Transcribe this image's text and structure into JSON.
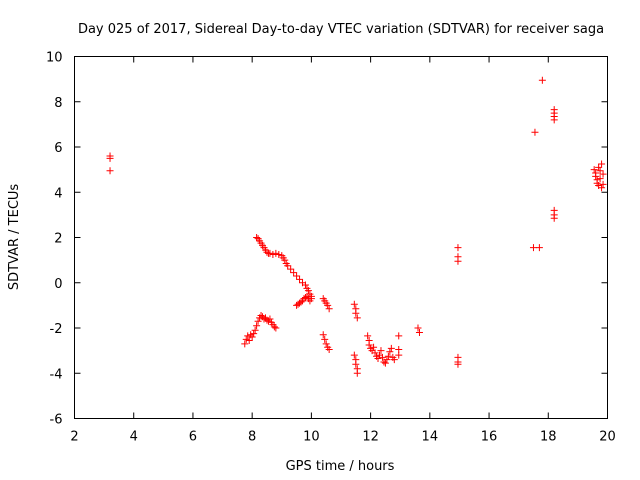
{
  "chart_data": {
    "type": "scatter",
    "title": "Day 025 of 2017, Sidereal Day-to-day VTEC variation (SDTVAR) for receiver saga",
    "xlabel": "GPS time / hours",
    "ylabel": "SDTVAR / TECUs",
    "xlim": [
      2,
      20
    ],
    "ylim": [
      -6,
      10
    ],
    "xticks": [
      2,
      4,
      6,
      8,
      10,
      12,
      14,
      16,
      18,
      20
    ],
    "yticks": [
      -6,
      -4,
      -2,
      0,
      2,
      4,
      6,
      8,
      10
    ],
    "grid": false,
    "marker": "+",
    "colors": {
      "points": "#ff0000",
      "axes": "#000000"
    },
    "series": [
      {
        "name": "SDTVAR",
        "points": [
          [
            3.2,
            5.6
          ],
          [
            3.2,
            5.5
          ],
          [
            3.2,
            4.95
          ],
          [
            7.75,
            -2.7
          ],
          [
            7.8,
            -2.5
          ],
          [
            7.85,
            -2.35
          ],
          [
            7.9,
            -2.55
          ],
          [
            7.95,
            -2.3
          ],
          [
            8.0,
            -2.4
          ],
          [
            8.05,
            -2.25
          ],
          [
            8.1,
            -2.1
          ],
          [
            8.15,
            -1.9
          ],
          [
            8.2,
            -1.7
          ],
          [
            8.25,
            -1.55
          ],
          [
            8.3,
            -1.45
          ],
          [
            8.35,
            -1.5
          ],
          [
            8.4,
            -1.6
          ],
          [
            8.45,
            -1.55
          ],
          [
            8.5,
            -1.65
          ],
          [
            8.55,
            -1.7
          ],
          [
            8.6,
            -1.6
          ],
          [
            8.65,
            -1.75
          ],
          [
            8.7,
            -1.85
          ],
          [
            8.75,
            -1.95
          ],
          [
            8.8,
            -2.0
          ],
          [
            8.15,
            2.0
          ],
          [
            8.2,
            1.95
          ],
          [
            8.25,
            1.85
          ],
          [
            8.3,
            1.75
          ],
          [
            8.35,
            1.65
          ],
          [
            8.4,
            1.55
          ],
          [
            8.45,
            1.45
          ],
          [
            8.5,
            1.35
          ],
          [
            8.55,
            1.3
          ],
          [
            8.6,
            1.3
          ],
          [
            8.7,
            1.25
          ],
          [
            8.8,
            1.3
          ],
          [
            8.9,
            1.25
          ],
          [
            9.0,
            1.2
          ],
          [
            9.05,
            1.1
          ],
          [
            9.1,
            1.0
          ],
          [
            9.15,
            0.85
          ],
          [
            9.2,
            0.75
          ],
          [
            9.3,
            0.6
          ],
          [
            9.4,
            0.45
          ],
          [
            9.5,
            0.3
          ],
          [
            9.6,
            0.15
          ],
          [
            9.7,
            0.0
          ],
          [
            9.8,
            -0.1
          ],
          [
            9.85,
            -0.25
          ],
          [
            9.9,
            -0.35
          ],
          [
            9.95,
            -0.5
          ],
          [
            10.0,
            -0.6
          ],
          [
            10.0,
            -0.7
          ],
          [
            9.5,
            -1.0
          ],
          [
            9.55,
            -0.95
          ],
          [
            9.6,
            -0.9
          ],
          [
            9.65,
            -0.85
          ],
          [
            9.7,
            -0.8
          ],
          [
            9.75,
            -0.7
          ],
          [
            9.8,
            -0.65
          ],
          [
            9.85,
            -0.6
          ],
          [
            9.9,
            -0.7
          ],
          [
            9.95,
            -0.8
          ],
          [
            10.4,
            -0.7
          ],
          [
            10.45,
            -0.8
          ],
          [
            10.5,
            -0.9
          ],
          [
            10.55,
            -1.0
          ],
          [
            10.6,
            -1.15
          ],
          [
            10.4,
            -2.3
          ],
          [
            10.45,
            -2.5
          ],
          [
            10.5,
            -2.7
          ],
          [
            10.55,
            -2.85
          ],
          [
            10.6,
            -2.95
          ],
          [
            11.45,
            -0.95
          ],
          [
            11.5,
            -1.15
          ],
          [
            11.5,
            -1.35
          ],
          [
            11.55,
            -1.55
          ],
          [
            11.45,
            -3.2
          ],
          [
            11.5,
            -3.4
          ],
          [
            11.5,
            -3.6
          ],
          [
            11.55,
            -3.8
          ],
          [
            11.55,
            -4.0
          ],
          [
            11.9,
            -2.35
          ],
          [
            11.95,
            -2.55
          ],
          [
            11.95,
            -2.75
          ],
          [
            12.0,
            -2.9
          ],
          [
            12.05,
            -3.0
          ],
          [
            12.1,
            -2.85
          ],
          [
            12.15,
            -3.1
          ],
          [
            12.2,
            -3.25
          ],
          [
            12.25,
            -3.35
          ],
          [
            12.3,
            -3.2
          ],
          [
            12.35,
            -3.0
          ],
          [
            12.4,
            -3.3
          ],
          [
            12.45,
            -3.5
          ],
          [
            12.5,
            -3.55
          ],
          [
            12.55,
            -3.4
          ],
          [
            12.6,
            -3.25
          ],
          [
            12.65,
            -3.05
          ],
          [
            12.7,
            -2.9
          ],
          [
            12.75,
            -3.3
          ],
          [
            12.8,
            -3.4
          ],
          [
            12.95,
            -2.35
          ],
          [
            12.95,
            -2.95
          ],
          [
            12.95,
            -3.2
          ],
          [
            13.6,
            -2.0
          ],
          [
            13.65,
            -2.2
          ],
          [
            14.95,
            1.55
          ],
          [
            14.95,
            1.15
          ],
          [
            14.95,
            0.95
          ],
          [
            14.95,
            -3.3
          ],
          [
            14.95,
            -3.5
          ],
          [
            14.95,
            -3.6
          ],
          [
            17.55,
            6.65
          ],
          [
            17.5,
            1.55
          ],
          [
            17.7,
            1.55
          ],
          [
            17.8,
            8.95
          ],
          [
            18.2,
            7.65
          ],
          [
            18.2,
            7.5
          ],
          [
            18.2,
            7.35
          ],
          [
            18.2,
            7.2
          ],
          [
            18.2,
            3.2
          ],
          [
            18.2,
            3.0
          ],
          [
            18.2,
            2.85
          ],
          [
            19.55,
            5.0
          ],
          [
            19.6,
            4.85
          ],
          [
            19.6,
            4.7
          ],
          [
            19.65,
            4.55
          ],
          [
            19.65,
            4.4
          ],
          [
            19.7,
            4.3
          ],
          [
            19.7,
            5.1
          ],
          [
            19.75,
            4.95
          ],
          [
            19.75,
            4.6
          ],
          [
            19.8,
            5.25
          ],
          [
            19.8,
            4.2
          ],
          [
            19.85,
            4.8
          ],
          [
            19.85,
            4.35
          ]
        ]
      }
    ]
  }
}
